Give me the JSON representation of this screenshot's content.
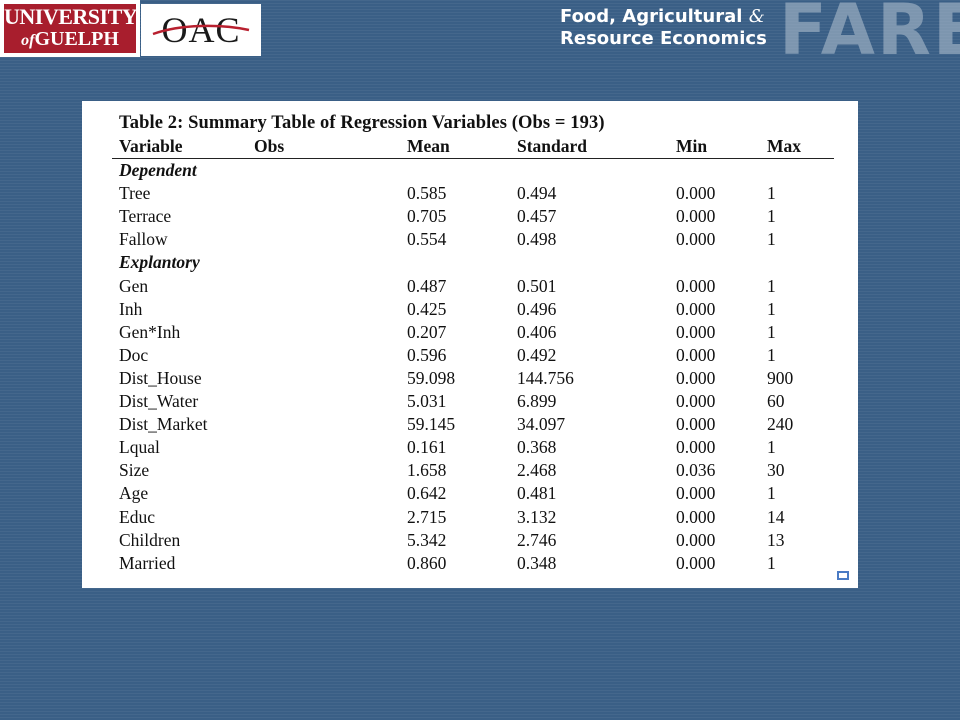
{
  "header": {
    "university_line1": "UNIVERSITY",
    "university_of": "of",
    "university_line2": "GUELPH",
    "oac": "OAC",
    "dept_line1": "Food, Agricultural",
    "dept_amp": "&",
    "dept_line2": "Resource Economics",
    "fare": "FARE"
  },
  "table": {
    "title": "Table 2: Summary Table of Regression Variables (Obs = 193)",
    "columns": [
      "Variable",
      "Obs",
      "Mean",
      "Standard",
      "Min",
      "Max"
    ],
    "sections": [
      {
        "name": "Dependent",
        "rows": [
          {
            "variable": "Tree",
            "mean": "0.585",
            "std": "0.494",
            "min": "0.000",
            "max": "1"
          },
          {
            "variable": "Terrace",
            "mean": "0.705",
            "std": "0.457",
            "min": "0.000",
            "max": "1"
          },
          {
            "variable": "Fallow",
            "mean": "0.554",
            "std": "0.498",
            "min": "0.000",
            "max": "1"
          }
        ]
      },
      {
        "name": "Explantory",
        "rows": [
          {
            "variable": "Gen",
            "mean": "0.487",
            "std": "0.501",
            "min": "0.000",
            "max": "1"
          },
          {
            "variable": "Inh",
            "mean": "0.425",
            "std": "0.496",
            "min": "0.000",
            "max": "1"
          },
          {
            "variable": "Gen*Inh",
            "mean": "0.207",
            "std": "0.406",
            "min": "0.000",
            "max": "1"
          },
          {
            "variable": "Doc",
            "mean": "0.596",
            "std": "0.492",
            "min": "0.000",
            "max": "1"
          },
          {
            "variable": "Dist_House",
            "mean": "59.098",
            "std": "144.756",
            "min": "0.000",
            "max": "900"
          },
          {
            "variable": "Dist_Water",
            "mean": "5.031",
            "std": "6.899",
            "min": "0.000",
            "max": "60"
          },
          {
            "variable": "Dist_Market",
            "mean": "59.145",
            "std": "34.097",
            "min": "0.000",
            "max": "240"
          },
          {
            "variable": "Lqual",
            "mean": "0.161",
            "std": "0.368",
            "min": "0.000",
            "max": "1"
          },
          {
            "variable": "Size",
            "mean": "1.658",
            "std": "2.468",
            "min": "0.036",
            "max": "30"
          },
          {
            "variable": "Age",
            "mean": "0.642",
            "std": "0.481",
            "min": "0.000",
            "max": "1"
          },
          {
            "variable": "Educ",
            "mean": "2.715",
            "std": "3.132",
            "min": "0.000",
            "max": "14"
          },
          {
            "variable": "Children",
            "mean": "5.342",
            "std": "2.746",
            "min": "0.000",
            "max": "13"
          },
          {
            "variable": "Married",
            "mean": "0.860",
            "std": "0.348",
            "min": "0.000",
            "max": "1"
          }
        ]
      }
    ]
  },
  "colors": {
    "background": "#3a5f86",
    "uog_red": "#a81e2d",
    "oac_swoosh": "#b8202f"
  }
}
